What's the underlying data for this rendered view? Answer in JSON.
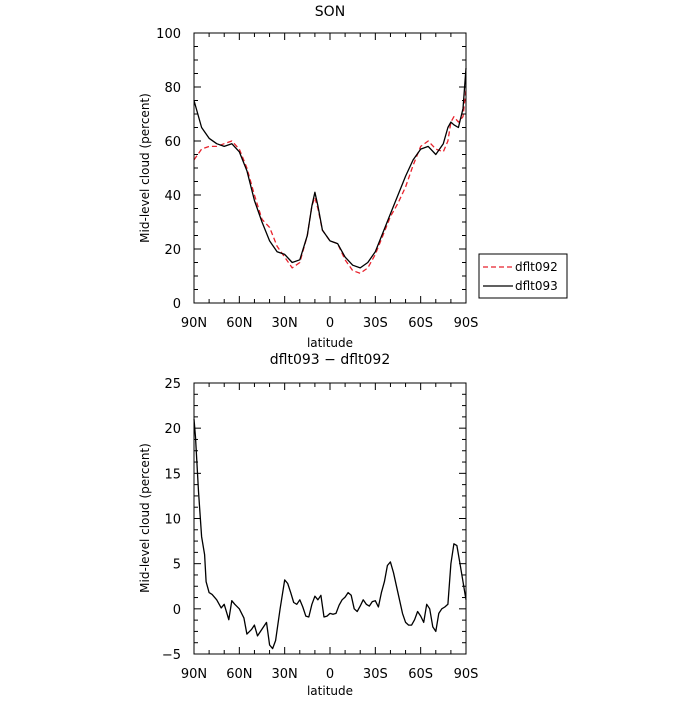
{
  "chart_data": [
    {
      "type": "line",
      "title": "SON",
      "xlabel": "latitude",
      "ylabel": "Mid-level cloud (percent)",
      "xlim": [
        -90,
        90
      ],
      "ylim": [
        0,
        100
      ],
      "xticks": [
        -90,
        -60,
        -30,
        0,
        30,
        60,
        90
      ],
      "xtick_labels": [
        "90N",
        "60N",
        "30N",
        "0",
        "30S",
        "60S",
        "90S"
      ],
      "yticks": [
        0,
        20,
        40,
        60,
        80,
        100
      ],
      "ytick_labels": [
        "0",
        "20",
        "40",
        "60",
        "80",
        "100"
      ],
      "legend_position": "right",
      "x": [
        -90,
        -85,
        -80,
        -75,
        -70,
        -65,
        -60,
        -55,
        -50,
        -45,
        -40,
        -35,
        -30,
        -25,
        -20,
        -15,
        -12,
        -10,
        -8,
        -5,
        0,
        5,
        10,
        15,
        20,
        25,
        30,
        35,
        40,
        45,
        50,
        55,
        60,
        65,
        70,
        75,
        78,
        80,
        82,
        85,
        88,
        90
      ],
      "series": [
        {
          "name": "dflt092",
          "color": "#e8222c",
          "dash": "dashed",
          "values": [
            53,
            57,
            58,
            58,
            59,
            60,
            57,
            50,
            40,
            31,
            28,
            21,
            17,
            13,
            15,
            25,
            36,
            39,
            35,
            27,
            23,
            22,
            16,
            12,
            11,
            13,
            18,
            25,
            32,
            37,
            43,
            51,
            58,
            60,
            57,
            56,
            60,
            67,
            69,
            67,
            69,
            79
          ]
        },
        {
          "name": "dflt093",
          "color": "#000000",
          "dash": "solid",
          "values": [
            75,
            65,
            61,
            59,
            58,
            59,
            56,
            49,
            38,
            30,
            23,
            19,
            18,
            15,
            16,
            25,
            36,
            41,
            36,
            27,
            23,
            22,
            17,
            14,
            13,
            15,
            19,
            26,
            33,
            40,
            47,
            53,
            57,
            58,
            55,
            59,
            65,
            67,
            66,
            65,
            72,
            87
          ]
        }
      ]
    },
    {
      "type": "line",
      "title": "dflt093 − dflt092",
      "xlabel": "latitude",
      "ylabel": "Mid-level cloud (percent)",
      "xlim": [
        -90,
        90
      ],
      "ylim": [
        -5,
        25
      ],
      "xticks": [
        -90,
        -60,
        -30,
        0,
        30,
        60,
        90
      ],
      "xtick_labels": [
        "90N",
        "60N",
        "30N",
        "0",
        "30S",
        "60S",
        "90S"
      ],
      "yticks": [
        -5,
        0,
        5,
        10,
        15,
        20,
        25
      ],
      "ytick_labels": [
        "−5",
        "0",
        "5",
        "10",
        "15",
        "20",
        "25"
      ],
      "series": [
        {
          "color": "#000000",
          "dash": "solid",
          "x": [
            -90,
            -89,
            -87,
            -85,
            -83,
            -82,
            -80,
            -78,
            -75,
            -72,
            -70,
            -67,
            -65,
            -63,
            -60,
            -57,
            -55,
            -52,
            -50,
            -48,
            -46,
            -44,
            -42,
            -40,
            -38,
            -36,
            -33,
            -30,
            -28,
            -26,
            -24,
            -22,
            -20,
            -18,
            -16,
            -14,
            -12,
            -10,
            -8,
            -6,
            -4,
            -2,
            0,
            2,
            4,
            6,
            8,
            10,
            12,
            14,
            16,
            18,
            20,
            22,
            24,
            26,
            28,
            30,
            32,
            34,
            36,
            38,
            40,
            42,
            44,
            46,
            48,
            50,
            52,
            54,
            56,
            58,
            60,
            62,
            64,
            66,
            68,
            70,
            72,
            74,
            76,
            78,
            80,
            82,
            84,
            86,
            88,
            89,
            90
          ],
          "values": [
            21,
            19,
            13,
            8,
            6,
            3,
            1.8,
            1.6,
            1.0,
            0.1,
            0.5,
            -1.2,
            0.9,
            0.5,
            0.0,
            -1.0,
            -2.8,
            -2.3,
            -1.8,
            -3.0,
            -2.5,
            -2.0,
            -1.5,
            -4.0,
            -4.4,
            -3.5,
            0.0,
            3.2,
            2.8,
            1.8,
            0.7,
            0.5,
            1.0,
            0.2,
            -0.8,
            -0.9,
            0.5,
            1.4,
            1.0,
            1.5,
            -0.9,
            -0.8,
            -0.5,
            -0.6,
            -0.5,
            0.4,
            1.0,
            1.3,
            1.8,
            1.5,
            0.0,
            -0.3,
            0.3,
            1.0,
            0.5,
            0.3,
            0.8,
            0.9,
            0.2,
            1.8,
            3.0,
            4.8,
            5.2,
            4.0,
            2.5,
            1.0,
            -0.5,
            -1.5,
            -1.8,
            -1.8,
            -1.2,
            -0.3,
            -0.8,
            -1.5,
            0.5,
            0.0,
            -2.0,
            -2.5,
            -0.5,
            0.0,
            0.2,
            0.5,
            5.0,
            7.2,
            7.0,
            5.0,
            3.0,
            2.0,
            1.0
          ]
        }
      ]
    }
  ]
}
